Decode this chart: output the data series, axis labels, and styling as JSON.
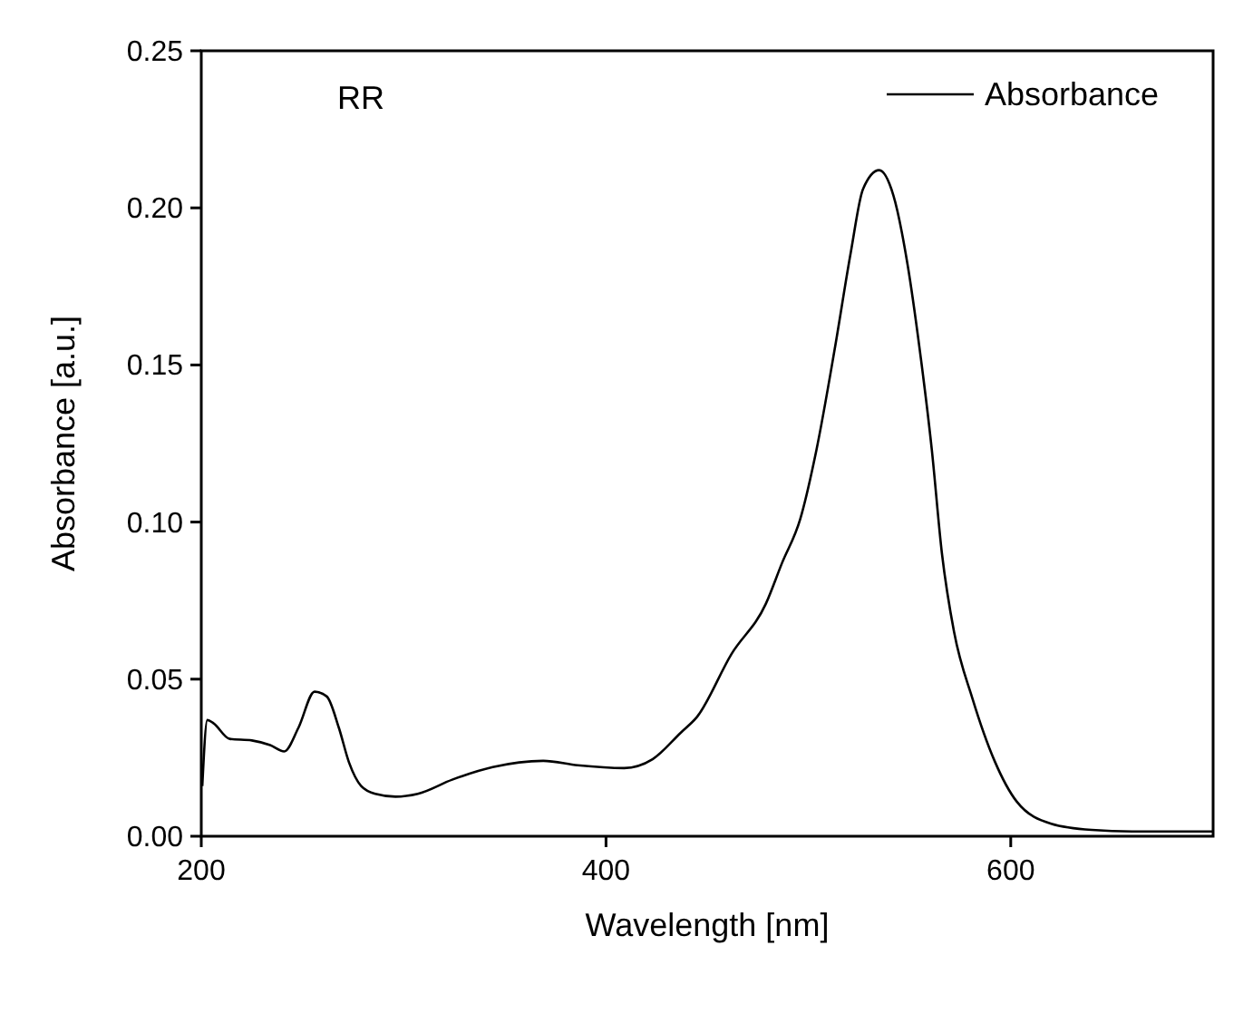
{
  "chart_data": {
    "type": "line",
    "xlabel": "Wavelength [nm]",
    "ylabel": "Absorbance [a.u.]",
    "xlim": [
      200,
      700
    ],
    "xticks": [
      200,
      400,
      600
    ],
    "ylim": [
      0,
      0.25
    ],
    "yticks": [
      {
        "value": 0,
        "label": "0.00"
      },
      {
        "value": 0.05,
        "label": "0.05"
      },
      {
        "value": 0.1,
        "label": "0.10"
      },
      {
        "value": 0.15,
        "label": "0.15"
      },
      {
        "value": 0.2,
        "label": "0.20"
      },
      {
        "value": 0.25,
        "label": "0.25"
      }
    ],
    "annotations": [
      "RR"
    ],
    "legend": "top right",
    "grid": false,
    "line_style": "solid",
    "x": [
      200.5,
      203,
      206,
      214,
      225,
      234,
      241,
      248,
      256,
      262,
      268,
      273,
      279,
      286,
      296,
      307,
      324,
      344,
      369,
      386,
      409,
      423,
      437,
      445,
      462,
      479,
      487,
      496,
      504,
      513,
      521,
      527,
      535,
      542,
      549,
      555,
      561,
      566,
      572,
      581,
      592,
      603,
      620,
      640,
      660,
      700
    ],
    "series": [
      {
        "name": "Absorbance",
        "color": "#000000",
        "values": [
          0.016,
          0.037,
          0.036,
          0.031,
          0.0305,
          0.029,
          0.027,
          0.0345,
          0.046,
          0.0445,
          0.0345,
          0.0235,
          0.016,
          0.0135,
          0.0126,
          0.0135,
          0.018,
          0.022,
          0.024,
          0.0226,
          0.0217,
          0.0245,
          0.033,
          0.038,
          0.058,
          0.074,
          0.087,
          0.101,
          0.123,
          0.155,
          0.186,
          0.206,
          0.212,
          0.204,
          0.182,
          0.155,
          0.123,
          0.09,
          0.065,
          0.044,
          0.024,
          0.011,
          0.004,
          0.002,
          0.0015,
          0.0015
        ]
      }
    ]
  }
}
